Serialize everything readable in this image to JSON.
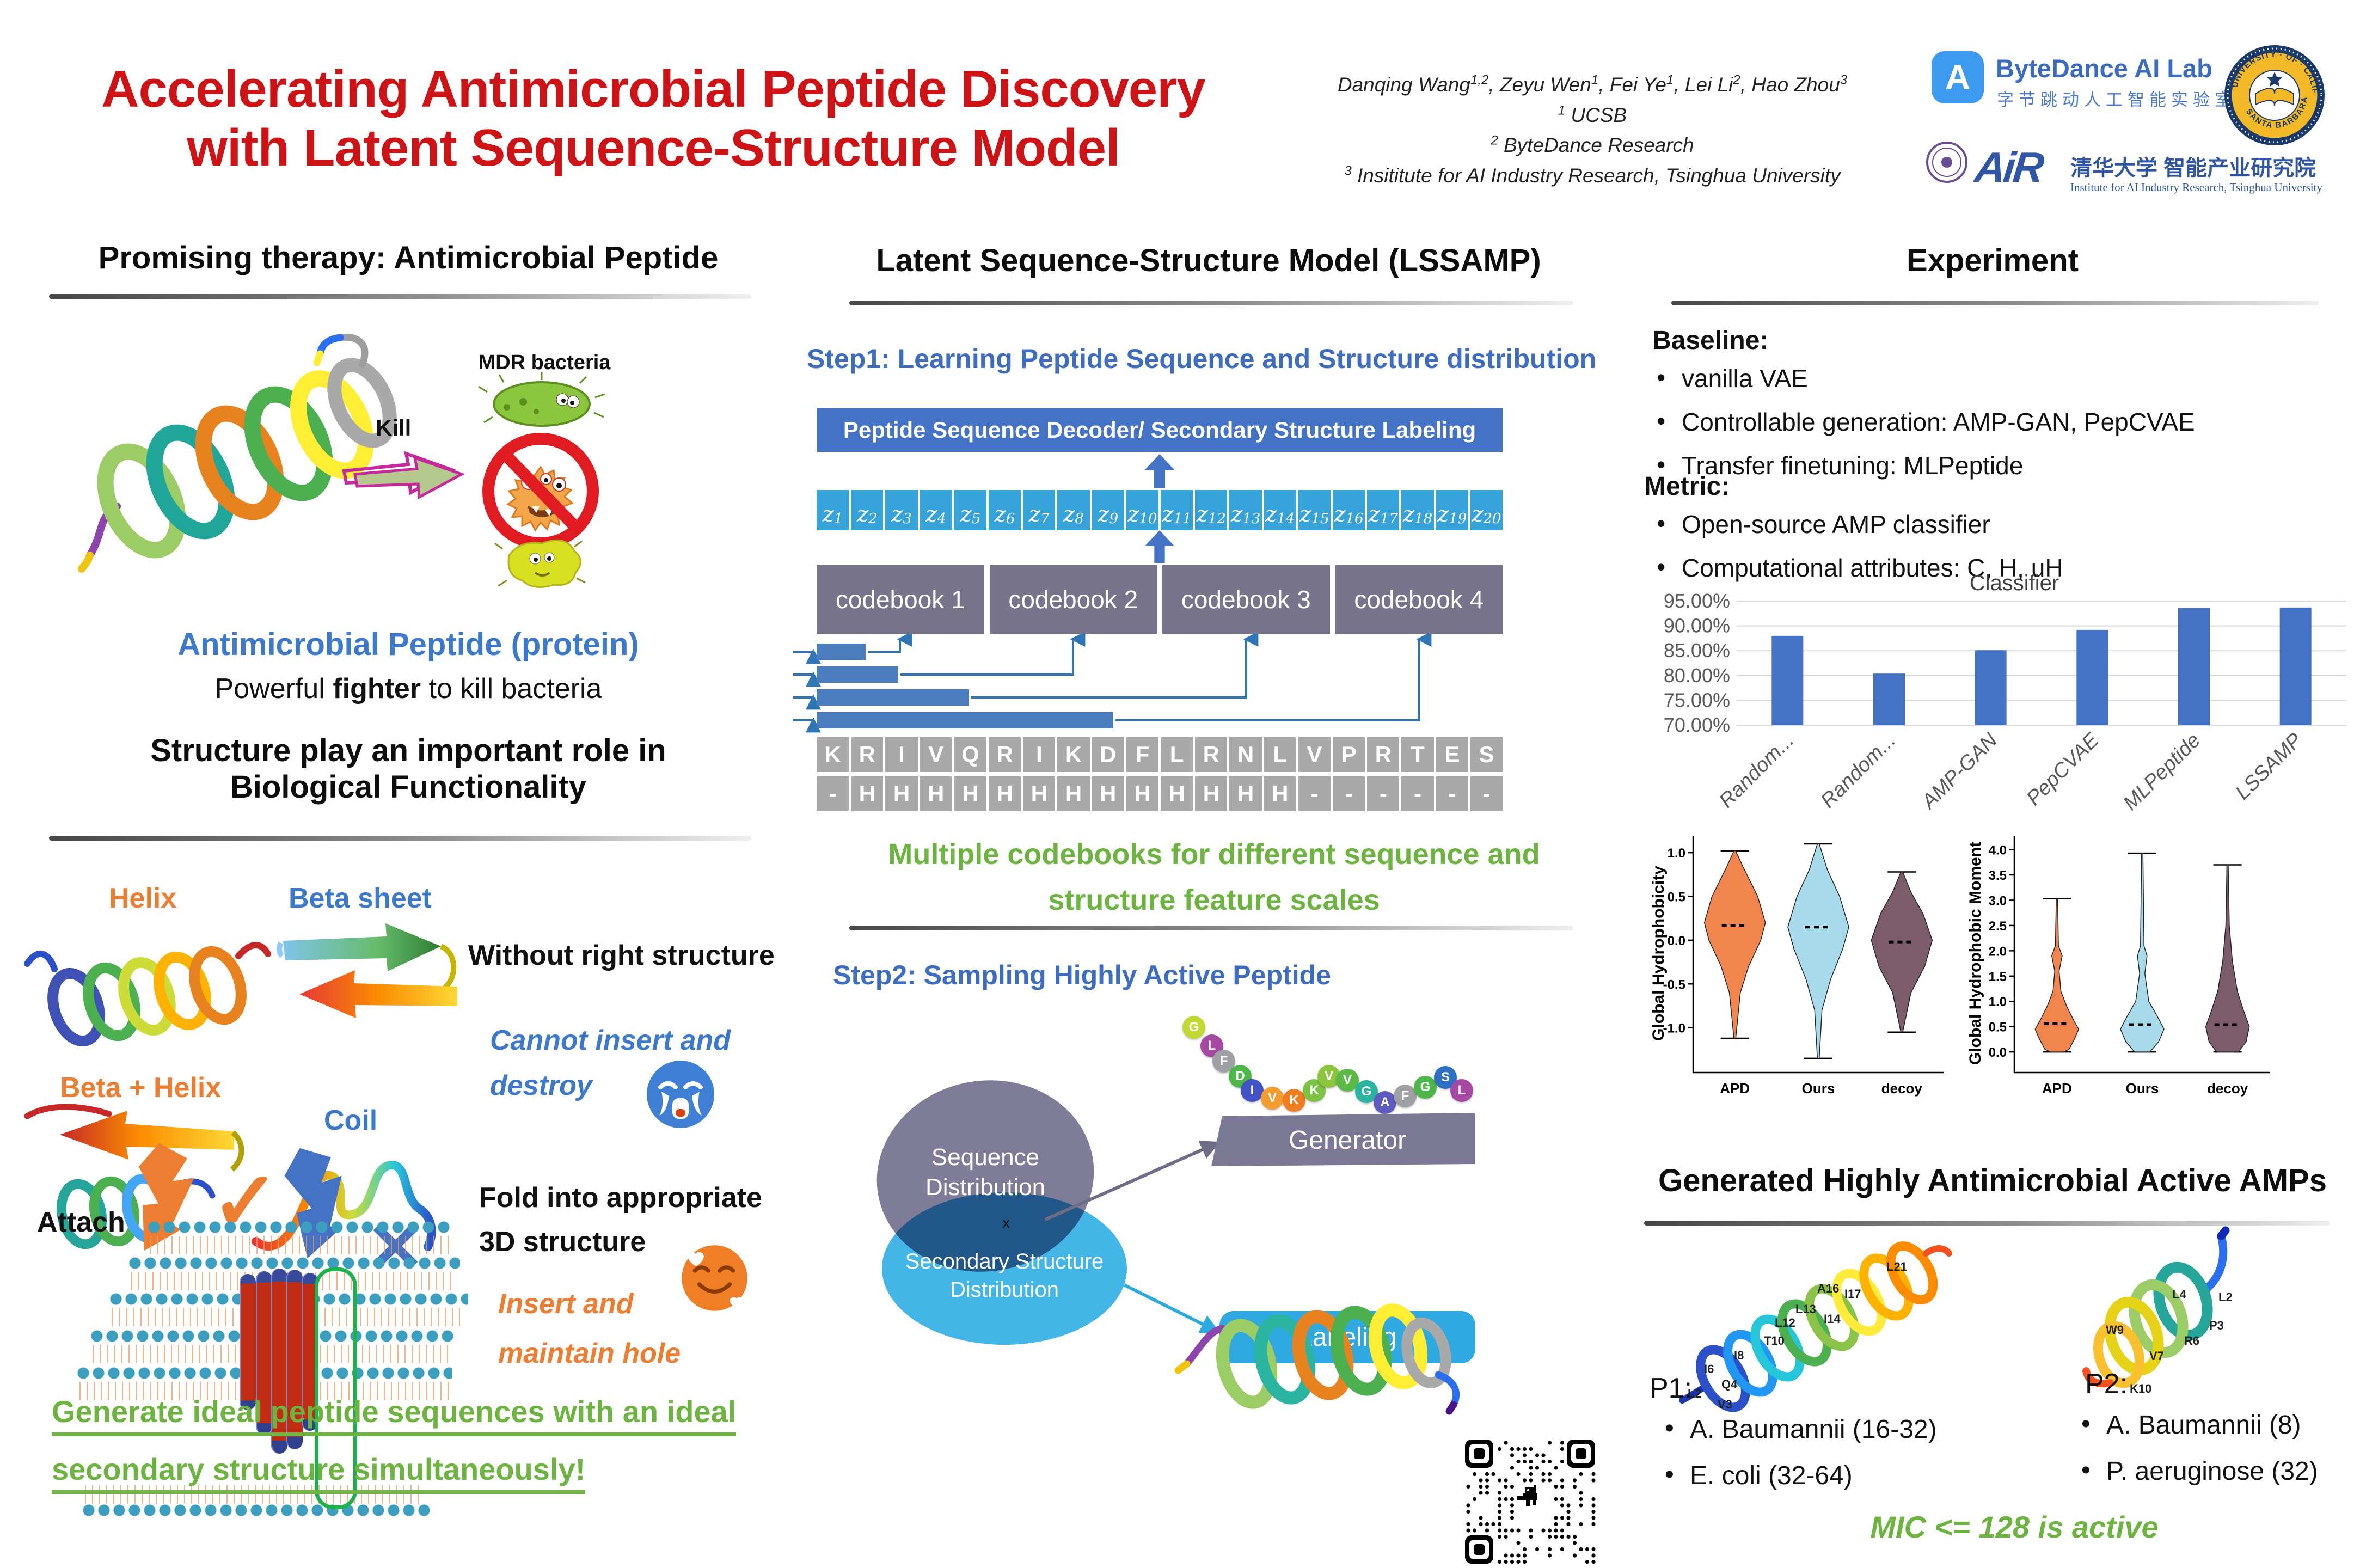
{
  "header": {
    "title_line1": "Accelerating Antimicrobial Peptide Discovery",
    "title_line2": "with Latent Sequence-Structure Model",
    "authors": [
      {
        "name": "Danqing Wang",
        "sup": "1,2"
      },
      {
        "name": ", Zeyu Wen",
        "sup": "1"
      },
      {
        "name": ", Fei Ye",
        "sup": "1"
      },
      {
        "name": ", Lei Li",
        "sup": "2"
      },
      {
        "name": ", Hao Zhou",
        "sup": "3"
      }
    ],
    "affiliations": [
      {
        "sup": "1",
        "text": " UCSB"
      },
      {
        "sup": "2",
        "text": " ByteDance Research"
      },
      {
        "sup": "3",
        "text": " Insititute for AI Industry Research, Tsinghua University"
      }
    ],
    "logos": {
      "bytedance_mark": "A",
      "bytedance_name": "ByteDance AI Lab",
      "bytedance_cn": "字节跳动人工智能实验室",
      "ucsb_arc_top": "UNIVERSITY · OF · CALIFORNIA",
      "ucsb_arc_bottom": "SANTA BARBARA",
      "air_name": "AiR",
      "air_cn": "清华大学 智能产业研究院",
      "air_en": "Institute for AI Industry Research, Tsinghua University"
    }
  },
  "left": {
    "section1_title": "Promising therapy: Antimicrobial Peptide",
    "kill_label": "Kill",
    "mdr_label": "MDR bacteria",
    "amp_title": "Antimicrobial Peptide (protein)",
    "amp_sub_pre": "Powerful ",
    "amp_sub_bold": "fighter",
    "amp_sub_post": " to kill bacteria",
    "section2_title_line1": "Structure play an important role in",
    "section2_title_line2": "Biological Functionality",
    "labels": {
      "helix": "Helix",
      "beta_sheet": "Beta sheet",
      "beta_helix": "Beta + Helix",
      "coil": "Coil"
    },
    "without": "Without right structure",
    "cannot_line1": "Cannot insert and",
    "cannot_line2": "destroy",
    "attach": "Attach",
    "fold_line1": "Fold into appropriate",
    "fold_line2": "3D structure",
    "insert_line1": "Insert and",
    "insert_line2": "maintain  hole",
    "green_line1": "Generate ideal peptide sequences with an ideal",
    "green_line2": "secondary structure simultaneously!"
  },
  "middle": {
    "section_title": "Latent Sequence-Structure Model  (LSSAMP)",
    "step1_title": "Step1: Learning Peptide Sequence and Structure distribution",
    "decoder_label": "Peptide Sequence Decoder/ Secondary Structure Labeling",
    "z_prefix": "z",
    "z_count": 20,
    "codebooks": [
      "codebook 1",
      "codebook 2",
      "codebook 3",
      "codebook 4"
    ],
    "sequence": [
      "K",
      "R",
      "I",
      "V",
      "Q",
      "R",
      "I",
      "K",
      "D",
      "F",
      "L",
      "R",
      "N",
      "L",
      "V",
      "P",
      "R",
      "T",
      "E",
      "S"
    ],
    "structure": [
      "-",
      "H",
      "H",
      "H",
      "H",
      "H",
      "H",
      "H",
      "H",
      "H",
      "H",
      "H",
      "H",
      "H",
      "-",
      "-",
      "-",
      "-",
      "-",
      "-"
    ],
    "green_note_line1": "Multiple codebooks for different sequence and",
    "green_note_line2": "structure feature scales",
    "step2_title": "Step2: Sampling Highly Active Peptide",
    "beads": [
      {
        "l": "G",
        "c": "#C3D831"
      },
      {
        "l": "L",
        "c": "#A649A3"
      },
      {
        "l": "F",
        "c": "#9EA0A3"
      },
      {
        "l": "D",
        "c": "#4CB648"
      },
      {
        "l": "I",
        "c": "#4153C6"
      },
      {
        "l": "V",
        "c": "#F59C2F"
      },
      {
        "l": "K",
        "c": "#EF7D22"
      },
      {
        "l": "K",
        "c": "#7DC242"
      },
      {
        "l": "V",
        "c": "#8CC63F"
      },
      {
        "l": "V",
        "c": "#5BBA47"
      },
      {
        "l": "G",
        "c": "#2BB5A0"
      },
      {
        "l": "A",
        "c": "#5E5BC0"
      },
      {
        "l": "F",
        "c": "#9EA0A3"
      },
      {
        "l": "G",
        "c": "#4CB648"
      },
      {
        "l": "S",
        "c": "#2D6FC4"
      },
      {
        "l": "L",
        "c": "#A649A3"
      }
    ],
    "venn": {
      "seq_line1": "Sequence",
      "seq_line2": "Distribution",
      "x_label": "x",
      "ss_line1": "Secondary Structure",
      "ss_line2": "Distribution"
    },
    "generator_label": "Generator",
    "labeling_label": "Labeling"
  },
  "right": {
    "section_title": "Experiment",
    "baseline_heading": "Baseline:",
    "baseline_items": [
      "vanilla VAE",
      "Controllable generation: AMP-GAN, PepCVAE",
      "Transfer finetuning: MLPeptide"
    ],
    "metric_heading": "Metric:",
    "metric_items": [
      "Open-source AMP classifier",
      "Computational attributes: C, H, uH"
    ],
    "generated_title": "Generated Highly Antimicrobial Active AMPs",
    "p1_heading": "P1:",
    "p1_items": [
      "A. Baumannii (16-32)",
      "E. coli (32-64)"
    ],
    "p2_heading": "P2:",
    "p2_items": [
      "A. Baumannii (8)",
      "P. aeruginose (32)"
    ],
    "mic_note": "MIC <= 128 is active",
    "p1_residues": [
      "L2",
      "V3",
      "Q4",
      "I6",
      "I8",
      "T10",
      "L12",
      "L13",
      "I14",
      "A16",
      "I17",
      "L21"
    ],
    "p2_residues": [
      "L2",
      "P3",
      "L4",
      "R6",
      "V7",
      "W9",
      "K10"
    ]
  },
  "chart_data": [
    {
      "type": "bar",
      "title": "Classifier",
      "categories": [
        "Random...",
        "Random...",
        "AMP-GAN",
        "PepCVAE",
        "MLPeptide",
        "LSSAMP"
      ],
      "values": [
        88.0,
        80.4,
        85.1,
        89.2,
        93.6,
        93.7
      ],
      "unit": "%",
      "ylim": [
        70,
        95
      ],
      "yticks": [
        95,
        90,
        85,
        80,
        75,
        70
      ],
      "ytick_format": "percent2",
      "grid": true,
      "bar_color": "#4472C4",
      "xlabel": "",
      "ylabel": ""
    },
    {
      "type": "violin",
      "title": "",
      "ylabel": "Global Hydrophobicity",
      "categories": [
        "APD",
        "Ours",
        "decoy"
      ],
      "ylim": [
        -1.45,
        1.15
      ],
      "yticks": [
        1.0,
        0.5,
        0.0,
        -0.5,
        -1.0
      ],
      "series": [
        {
          "name": "APD",
          "color": "#F2854E",
          "median": 0.17,
          "min": -1.12,
          "max": 1.02,
          "profile": [
            [
              1.02,
              0.03
            ],
            [
              0.85,
              0.25
            ],
            [
              0.5,
              0.75
            ],
            [
              0.2,
              1.0
            ],
            [
              0.0,
              0.85
            ],
            [
              -0.3,
              0.45
            ],
            [
              -0.6,
              0.18
            ],
            [
              -1.12,
              0.03
            ]
          ]
        },
        {
          "name": "Ours",
          "color": "#A7DBEC",
          "median": 0.15,
          "min": -1.35,
          "max": 1.1,
          "profile": [
            [
              1.1,
              0.03
            ],
            [
              0.8,
              0.3
            ],
            [
              0.5,
              0.7
            ],
            [
              0.15,
              1.0
            ],
            [
              -0.1,
              0.8
            ],
            [
              -0.45,
              0.4
            ],
            [
              -0.8,
              0.12
            ],
            [
              -1.35,
              0.03
            ]
          ]
        },
        {
          "name": "decoy",
          "color": "#7C5C6B",
          "median": -0.02,
          "min": -1.05,
          "max": 0.78,
          "profile": [
            [
              0.78,
              0.03
            ],
            [
              0.55,
              0.3
            ],
            [
              0.3,
              0.7
            ],
            [
              0.0,
              1.0
            ],
            [
              -0.3,
              0.75
            ],
            [
              -0.6,
              0.3
            ],
            [
              -1.05,
              0.03
            ]
          ]
        }
      ]
    },
    {
      "type": "violin",
      "title": "",
      "ylabel": "Global Hydrophobic Moment",
      "categories": [
        "APD",
        "Ours",
        "decoy"
      ],
      "ylim": [
        -0.3,
        4.2
      ],
      "yticks": [
        4.0,
        3.5,
        3.0,
        2.5,
        2.0,
        1.5,
        1.0,
        0.5,
        0.0
      ],
      "series": [
        {
          "name": "APD",
          "color": "#F2854E",
          "median": 0.56,
          "min": 0.0,
          "max": 3.03,
          "profile": [
            [
              3.03,
              0.03
            ],
            [
              2.1,
              0.07
            ],
            [
              1.9,
              0.24
            ],
            [
              1.6,
              0.1
            ],
            [
              1.2,
              0.18
            ],
            [
              0.9,
              0.45
            ],
            [
              0.6,
              0.8
            ],
            [
              0.45,
              1.0
            ],
            [
              0.25,
              0.8
            ],
            [
              0.05,
              0.55
            ],
            [
              0.0,
              0.3
            ]
          ]
        },
        {
          "name": "Ours",
          "color": "#A7DBEC",
          "median": 0.54,
          "min": 0.0,
          "max": 3.93,
          "profile": [
            [
              3.93,
              0.03
            ],
            [
              2.1,
              0.08
            ],
            [
              1.9,
              0.22
            ],
            [
              1.55,
              0.12
            ],
            [
              1.0,
              0.3
            ],
            [
              0.7,
              0.7
            ],
            [
              0.45,
              1.0
            ],
            [
              0.2,
              0.75
            ],
            [
              0.0,
              0.35
            ]
          ]
        },
        {
          "name": "decoy",
          "color": "#7C5C6B",
          "median": 0.54,
          "min": 0.0,
          "max": 3.7,
          "profile": [
            [
              3.7,
              0.03
            ],
            [
              2.5,
              0.08
            ],
            [
              1.8,
              0.22
            ],
            [
              1.2,
              0.45
            ],
            [
              0.8,
              0.75
            ],
            [
              0.5,
              1.0
            ],
            [
              0.2,
              0.85
            ],
            [
              0.0,
              0.5
            ]
          ]
        }
      ]
    }
  ]
}
